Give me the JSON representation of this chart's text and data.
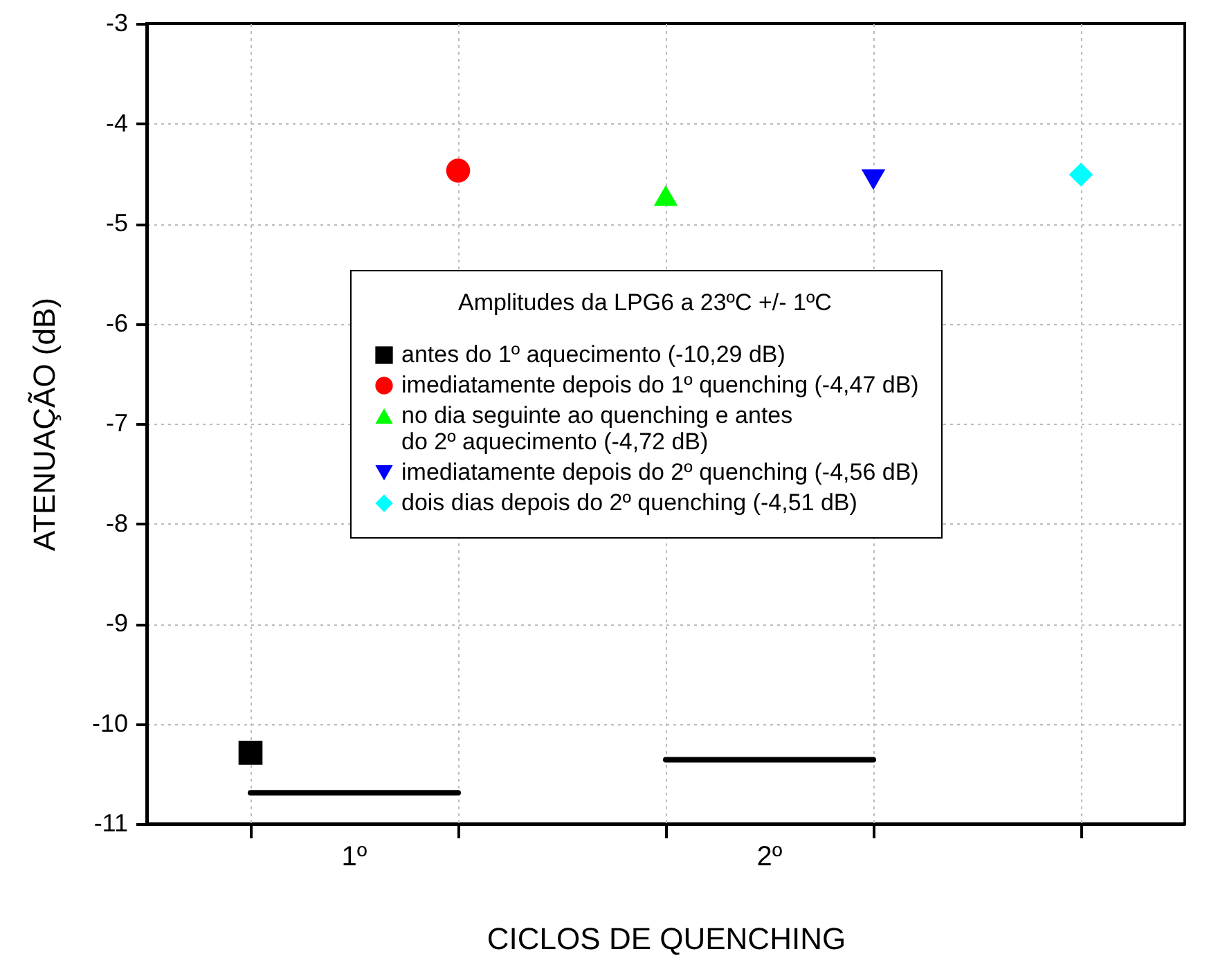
{
  "chart_data": {
    "type": "scatter",
    "xlabel": "CICLOS DE QUENCHING",
    "ylabel": "ATENUAÇÃO (dB)",
    "legend_title": "Amplitudes da LPG6 a 23ºC +/- 1ºC",
    "categories": [
      null,
      null,
      null,
      null,
      null
    ],
    "ylim": [
      -11,
      -3
    ],
    "yticks": [
      -11,
      -10,
      -9,
      -8,
      -7,
      -6,
      -5,
      -4,
      -3
    ],
    "tick_labels": "y",
    "grid": true,
    "legend": "right",
    "annotations": [
      "1º",
      "2º"
    ],
    "series": [
      {
        "name": "antes do 1º aquecimento (-10,29 dB)",
        "color": "#000000",
        "marker": "square",
        "values": [
          -10.29,
          null,
          null,
          null,
          null
        ]
      },
      {
        "name": "imediatamente depois do 1º quenching (-4,47 dB)",
        "color": "#ff0000",
        "marker": "circle",
        "values": [
          null,
          -4.47,
          null,
          null,
          null
        ]
      },
      {
        "name": "no dia seguinte ao quenching e antes\ndo 2º aquecimento (-4,72 dB)",
        "color": "#00ff00",
        "marker": "triangle",
        "values": [
          null,
          null,
          -4.72,
          null,
          null
        ]
      },
      {
        "name": "imediatamente depois do 2º quenching (-4,56 dB)",
        "color": "#0000ff",
        "marker": "triangle-down",
        "values": [
          null,
          null,
          null,
          -4.56,
          null
        ]
      },
      {
        "name": "dois dias depois do 2º quenching (-4,51 dB)",
        "color": "#00ffff",
        "marker": "diamond",
        "values": [
          null,
          null,
          null,
          null,
          -4.51
        ]
      },
      {
        "type": "line",
        "color": "#000000",
        "values": [
          -10.69,
          -10.69,
          null,
          null,
          null
        ]
      },
      {
        "type": "line",
        "color": "#000000",
        "values": [
          null,
          null,
          -10.36,
          -10.36,
          null
        ]
      }
    ]
  }
}
